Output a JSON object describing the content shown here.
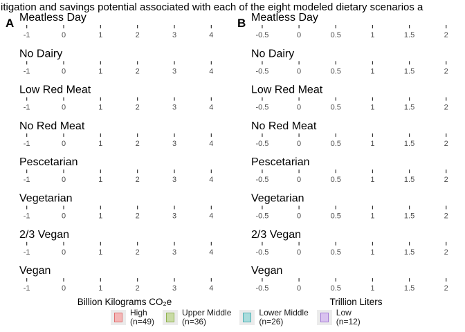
{
  "title": "d mitigation and savings potential associated with each of the eight modeled dietary scenarios a",
  "legend": [
    {
      "name": "High",
      "n": "(n=49)",
      "fill": "#f4b6b6",
      "stroke": "#e07070"
    },
    {
      "name": "Upper Middle",
      "n": "(n=36)",
      "fill": "#c9dba5",
      "stroke": "#8fb050"
    },
    {
      "name": "Lower Middle",
      "n": "(n=26)",
      "fill": "#a9dcdc",
      "stroke": "#50b0b4"
    },
    {
      "name": "Low",
      "n": "(n=12)",
      "fill": "#d9c2ef",
      "stroke": "#a47ad6"
    }
  ],
  "chart_data": [
    {
      "type": "box",
      "panel": "A",
      "xlabel": "Billion Kilograms CO₂e",
      "xlim": [
        -1.2,
        4.5
      ],
      "ticks": [
        -1,
        0,
        1,
        2,
        3,
        4
      ],
      "tick_labels": [
        "-1",
        "0",
        "1",
        "2",
        "3",
        "4"
      ],
      "facets": [
        "Meatless Day",
        "No Dairy",
        "Low Red Meat",
        "No Red Meat",
        "Pescetarian",
        "Vegetarian",
        "2/3 Vegan",
        "Vegan"
      ]
    },
    {
      "type": "box",
      "panel": "B",
      "xlabel": "Trillion Liters",
      "xlim": [
        -0.65,
        2.2
      ],
      "ticks": [
        -0.5,
        0,
        0.5,
        1,
        1.5,
        2
      ],
      "tick_labels": [
        "-0.5",
        "0",
        "0.5",
        "1",
        "1.5",
        "2"
      ],
      "facets": [
        "Meatless Day",
        "No Dairy",
        "Low Red Meat",
        "No Red Meat",
        "Pescetarian",
        "Vegetarian",
        "2/3 Vegan",
        "Vegan"
      ]
    }
  ]
}
